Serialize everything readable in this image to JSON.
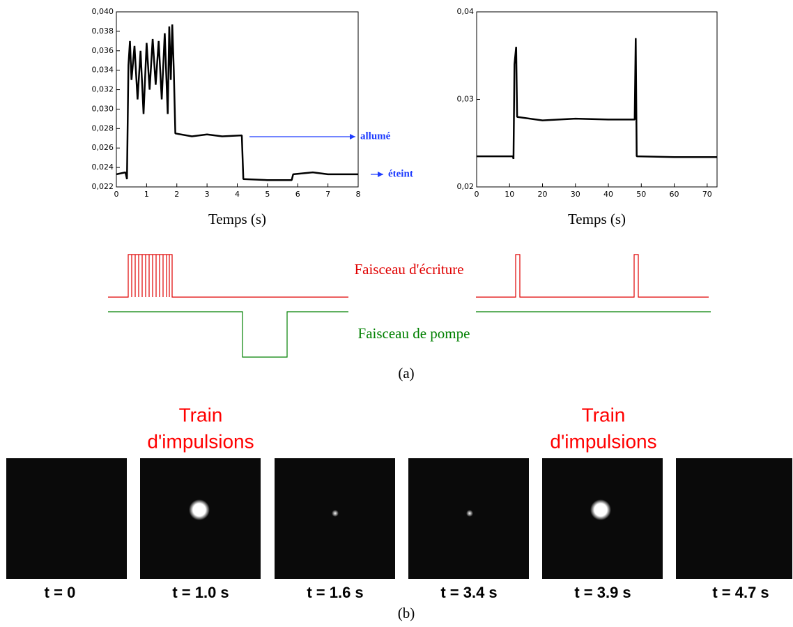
{
  "chart_data": [
    {
      "type": "line",
      "xlabel": "Temps (s)",
      "x": [
        0,
        0.3,
        0.35,
        0.4,
        0.45,
        0.5,
        0.6,
        0.7,
        0.8,
        0.9,
        1.0,
        1.1,
        1.2,
        1.3,
        1.4,
        1.5,
        1.6,
        1.7,
        1.75,
        1.8,
        1.85,
        1.9,
        1.95,
        2.5,
        3.0,
        3.5,
        4.15,
        4.2,
        5.0,
        5.8,
        5.85,
        6.5,
        7.0,
        8.0
      ],
      "values": [
        0.0233,
        0.0235,
        0.0228,
        0.0345,
        0.037,
        0.033,
        0.0365,
        0.031,
        0.036,
        0.0295,
        0.0368,
        0.032,
        0.0372,
        0.0325,
        0.037,
        0.031,
        0.0378,
        0.0295,
        0.0385,
        0.033,
        0.0387,
        0.034,
        0.0275,
        0.0272,
        0.0274,
        0.0272,
        0.0273,
        0.0228,
        0.0227,
        0.0227,
        0.0233,
        0.0235,
        0.0233,
        0.0233
      ],
      "color": "#000000",
      "xlim": [
        0,
        8
      ],
      "xticks": [
        0,
        1,
        2,
        3,
        4,
        5,
        6,
        7,
        8
      ],
      "ylim": [
        0.022,
        0.04
      ],
      "yticks": [
        {
          "value": 0.022,
          "label": "0,022"
        },
        {
          "value": 0.024,
          "label": "0,024"
        },
        {
          "value": 0.026,
          "label": "0,026"
        },
        {
          "value": 0.028,
          "label": "0,028"
        },
        {
          "value": 0.03,
          "label": "0,030"
        },
        {
          "value": 0.032,
          "label": "0,032"
        },
        {
          "value": 0.034,
          "label": "0,034"
        },
        {
          "value": 0.036,
          "label": "0,036"
        },
        {
          "value": 0.038,
          "label": "0,038"
        },
        {
          "value": 0.04,
          "label": "0,040"
        }
      ],
      "annotations": [
        "allumé",
        "éteint"
      ]
    },
    {
      "type": "line",
      "xlabel": "Temps (s)",
      "x": [
        0,
        11,
        11.2,
        11.5,
        12,
        12.3,
        20,
        30,
        40,
        48,
        48.3,
        48.6,
        60,
        73
      ],
      "values": [
        0.0235,
        0.0235,
        0.0232,
        0.034,
        0.036,
        0.028,
        0.0276,
        0.0278,
        0.0277,
        0.0277,
        0.037,
        0.0235,
        0.0234,
        0.0234
      ],
      "color": "#000000",
      "xlim": [
        0,
        73
      ],
      "xticks": [
        0,
        10,
        20,
        30,
        40,
        50,
        60,
        70
      ],
      "ylim": [
        0.02,
        0.04
      ],
      "yticks": [
        {
          "value": 0.02,
          "label": "0,02"
        },
        {
          "value": 0.03,
          "label": "0,03"
        },
        {
          "value": 0.04,
          "label": "0,04"
        }
      ]
    }
  ],
  "timing": {
    "write_beam": "Faisceau d'écriture",
    "pump_beam": "Faisceau de pompe",
    "panel_label": "(a)"
  },
  "panel_b": {
    "train_labels": [
      [
        "Train",
        "d'impulsions"
      ],
      [
        "Train",
        "d'impulsions"
      ]
    ],
    "times": [
      "t = 0",
      "t = 1.0 s",
      "t = 1.6 s",
      "t = 3.4 s",
      "t = 3.9 s",
      "t = 4.7 s"
    ],
    "panel_label": "(b)"
  }
}
